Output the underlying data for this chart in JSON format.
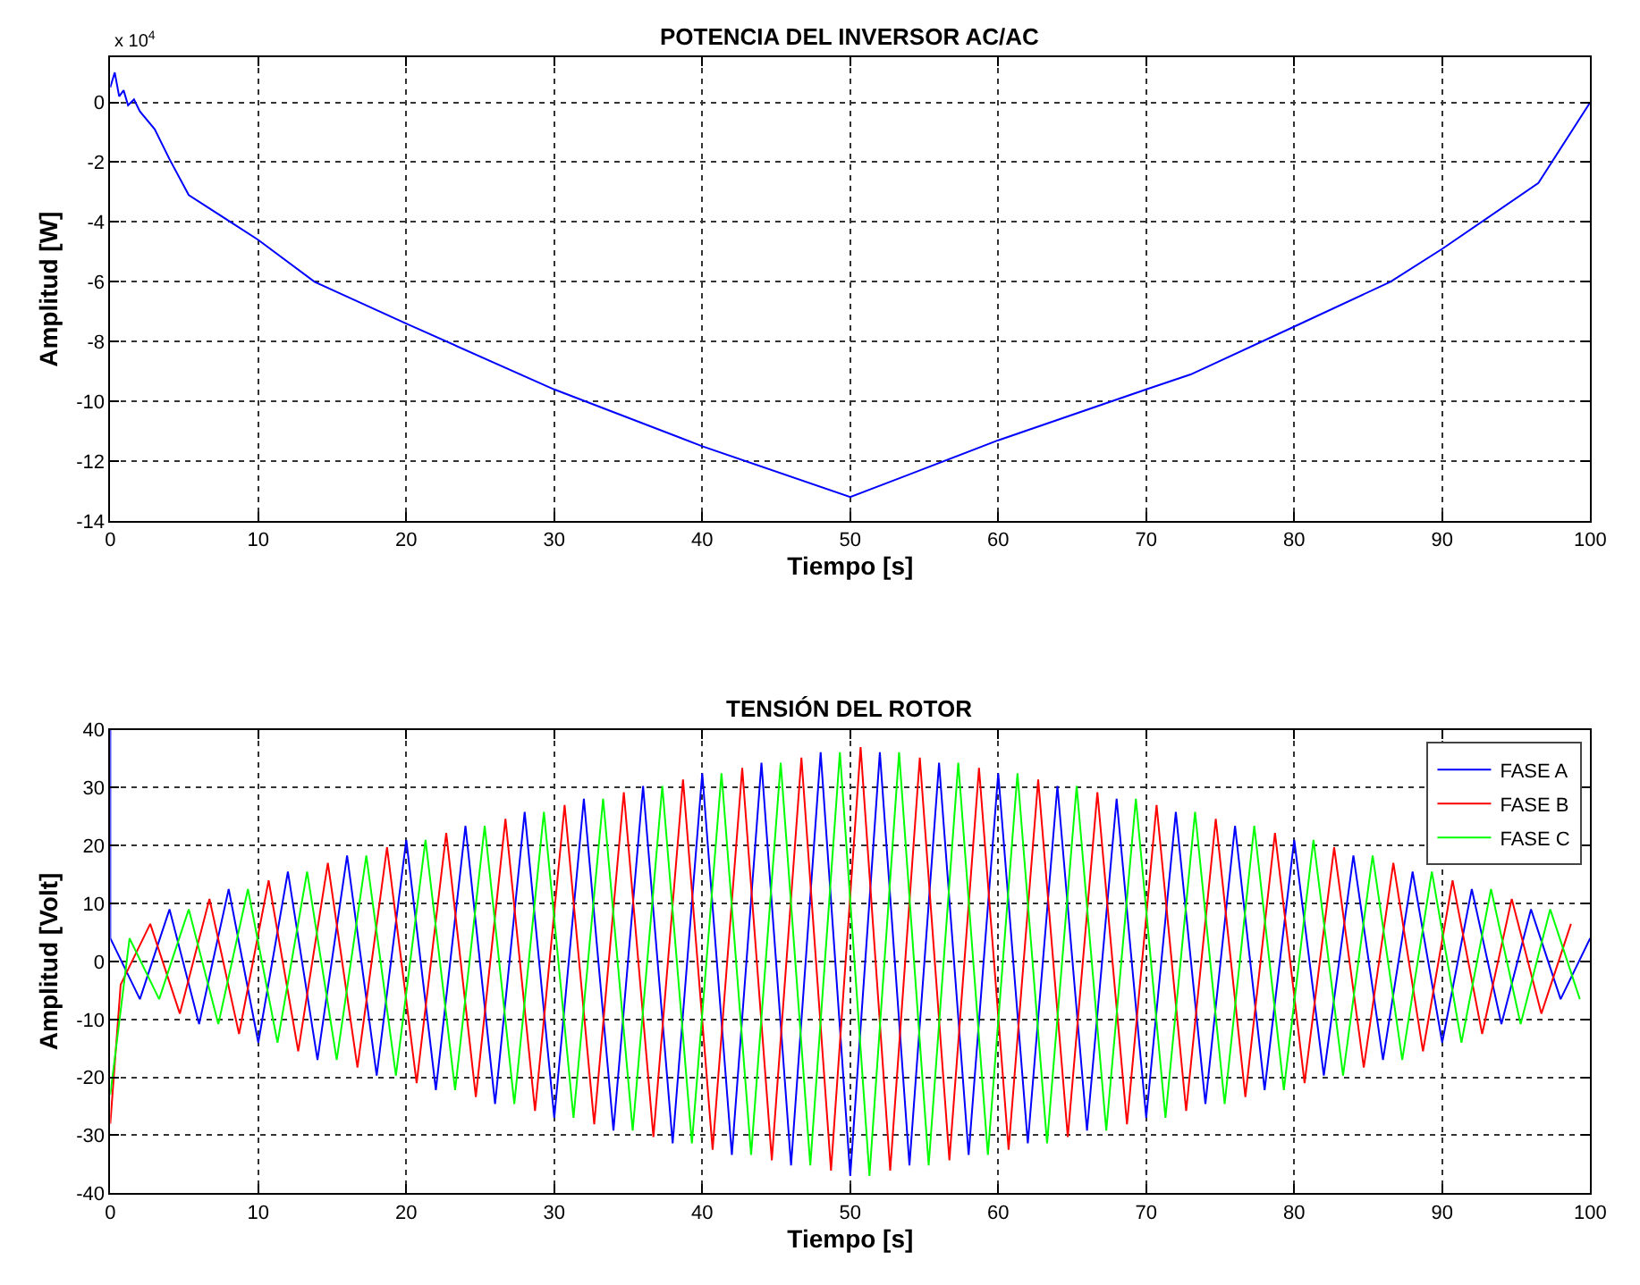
{
  "chart_data": [
    {
      "type": "line",
      "title": "POTENCIA DEL INVERSOR AC/AC",
      "xlabel": "Tiempo [s]",
      "ylabel": "Amplitud [W]",
      "annotations": [
        "x 10$^{4}$"
      ],
      "series": [
        {
          "color": "#0000ff",
          "x": [
            0,
            0.3,
            0.6,
            0.9,
            1.2,
            1.6,
            2,
            3,
            4,
            5.3,
            10,
            13.8,
            20,
            30,
            40,
            50,
            60,
            70,
            73,
            80,
            86.5,
            90,
            96.5,
            100
          ],
          "values": [
            0.5,
            1.0,
            0.2,
            0.4,
            -0.1,
            0.1,
            -0.3,
            -0.9,
            -1.9,
            -3.1,
            -4.6,
            -6.0,
            -7.4,
            -9.6,
            -11.5,
            -13.2,
            -11.3,
            -9.6,
            -9.1,
            -7.5,
            -6.0,
            -4.9,
            -2.7,
            0
          ]
        }
      ],
      "xlim": [
        0,
        100
      ],
      "xticks": [
        0,
        10,
        20,
        30,
        40,
        50,
        60,
        70,
        80,
        90,
        100
      ],
      "ylim": [
        -14,
        1.5
      ],
      "yticks": [
        -14,
        -12,
        -10,
        -8,
        -6,
        -4,
        -2,
        0
      ],
      "grid": true,
      "line_style": "solid"
    },
    {
      "type": "line",
      "title": "TENSIÓN DEL ROTOR",
      "xlabel": "Tiempo [s]",
      "ylabel": "Amplitud [Volt]",
      "series": [
        {
          "name": "FASE A",
          "color": "#0000ff",
          "x": [
            0,
            0,
            2,
            4,
            6,
            8,
            10,
            12,
            14,
            16,
            18,
            20,
            22,
            24,
            26,
            28,
            30,
            32,
            34,
            36,
            38,
            40,
            42,
            44,
            46,
            48,
            50,
            52,
            54,
            56,
            58,
            60,
            62,
            64,
            66,
            68,
            70,
            72,
            74,
            76,
            78,
            80,
            82,
            84,
            86,
            88,
            90,
            92,
            94,
            96,
            98,
            100
          ],
          "values": [
            40,
            4,
            -6.5,
            9,
            -10.8,
            12.5,
            -14,
            15.5,
            -17,
            18.3,
            -19.7,
            21,
            -22.2,
            23.4,
            -24.6,
            25.8,
            -27,
            28.1,
            -29.2,
            30.3,
            -31.4,
            32.5,
            -33.4,
            34.3,
            -35.2,
            36.1,
            -37,
            36.1,
            -35.2,
            34.3,
            -33.4,
            32.5,
            -31.4,
            30.3,
            -29.2,
            28.1,
            -27,
            25.8,
            -24.6,
            23.4,
            -22.2,
            21,
            -19.7,
            18.3,
            -17,
            15.5,
            -14,
            12.5,
            -10.8,
            9,
            -6.5,
            4
          ]
        },
        {
          "name": "FASE B",
          "color": "#ff0000",
          "x": [
            0,
            0.7,
            2.7,
            4.7,
            6.7,
            8.7,
            10.7,
            12.7,
            14.7,
            16.7,
            18.7,
            20.7,
            22.7,
            24.7,
            26.7,
            28.7,
            30.7,
            32.7,
            34.7,
            36.7,
            38.7,
            40.7,
            42.7,
            44.7,
            46.7,
            48.7,
            50.7,
            52.7,
            54.7,
            56.7,
            58.7,
            60.7,
            62.7,
            64.7,
            66.7,
            68.7,
            70.7,
            72.7,
            74.7,
            76.7,
            78.7,
            80.7,
            82.7,
            84.7,
            86.7,
            88.7,
            90.7,
            92.7,
            94.7,
            96.7,
            98.7
          ],
          "values": [
            -28,
            -4,
            6.5,
            -9,
            10.8,
            -12.5,
            14,
            -15.5,
            17,
            -18.3,
            19.7,
            -21,
            22.2,
            -23.4,
            24.6,
            -25.8,
            27,
            -28.1,
            29.2,
            -30.3,
            31.4,
            -32.5,
            33.4,
            -34.3,
            35.2,
            -36.1,
            37,
            -36.1,
            35.2,
            -34.3,
            33.4,
            -32.5,
            31.4,
            -30.3,
            29.2,
            -28.1,
            27,
            -25.8,
            24.6,
            -23.4,
            22.2,
            -21,
            19.7,
            -18.3,
            17,
            -15.5,
            14,
            -12.5,
            10.8,
            -9,
            6.5
          ]
        },
        {
          "name": "FASE C",
          "color": "#00ff00",
          "x": [
            0,
            1.3,
            3.3,
            5.3,
            7.3,
            9.3,
            11.3,
            13.3,
            15.3,
            17.3,
            19.3,
            21.3,
            23.3,
            25.3,
            27.3,
            29.3,
            31.3,
            33.3,
            35.3,
            37.3,
            39.3,
            41.3,
            43.3,
            45.3,
            47.3,
            49.3,
            51.3,
            53.3,
            55.3,
            57.3,
            59.3,
            61.3,
            63.3,
            65.3,
            67.3,
            69.3,
            71.3,
            73.3,
            75.3,
            77.3,
            79.3,
            81.3,
            83.3,
            85.3,
            87.3,
            89.3,
            91.3,
            93.3,
            95.3,
            97.3,
            99.3
          ],
          "values": [
            -23,
            4,
            -6.5,
            9,
            -10.8,
            12.5,
            -14,
            15.5,
            -17,
            18.3,
            -19.7,
            21,
            -22.2,
            23.4,
            -24.6,
            25.8,
            -27,
            28.1,
            -29.2,
            30.3,
            -31.4,
            32.5,
            -33.4,
            34.3,
            -35.2,
            36.1,
            -37,
            36.1,
            -35.2,
            34.3,
            -33.4,
            32.5,
            -31.4,
            30.3,
            -29.2,
            28.1,
            -27,
            25.8,
            -24.6,
            23.4,
            -22.2,
            21,
            -19.7,
            18.3,
            -17,
            15.5,
            -14,
            12.5,
            -10.8,
            9,
            -6.5
          ]
        }
      ],
      "xlim": [
        0,
        100
      ],
      "xticks": [
        0,
        10,
        20,
        30,
        40,
        50,
        60,
        70,
        80,
        90,
        100
      ],
      "ylim": [
        -40,
        40
      ],
      "yticks": [
        -40,
        -30,
        -20,
        -10,
        0,
        10,
        20,
        30,
        40
      ],
      "grid": true,
      "legend": "top right",
      "line_style": "solid"
    }
  ]
}
